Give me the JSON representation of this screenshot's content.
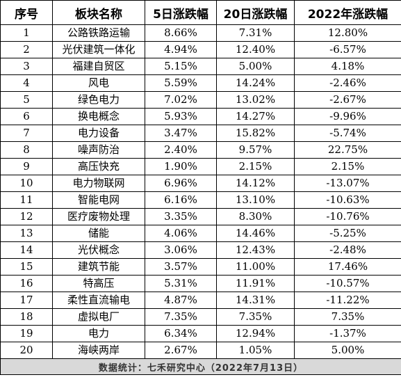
{
  "headers": [
    "序号",
    "板块名称",
    "5日涨跌幅",
    "20日涨跌幅",
    "2022年涨跌幅"
  ],
  "rows": [
    [
      "1",
      "公路铁路运输",
      "8.66%",
      "7.31%",
      "12.80%"
    ],
    [
      "2",
      "光伏建筑一体化",
      "4.94%",
      "12.40%",
      "-6.57%"
    ],
    [
      "3",
      "福建自贸区",
      "5.15%",
      "5.00%",
      "4.18%"
    ],
    [
      "4",
      "风电",
      "5.59%",
      "14.24%",
      "-2.46%"
    ],
    [
      "5",
      "绿色电力",
      "7.02%",
      "13.02%",
      "-2.67%"
    ],
    [
      "6",
      "换电概念",
      "5.93%",
      "14.27%",
      "-9.96%"
    ],
    [
      "7",
      "电力设备",
      "3.47%",
      "15.82%",
      "-5.74%"
    ],
    [
      "8",
      "噪声防治",
      "2.40%",
      "9.57%",
      "22.75%"
    ],
    [
      "9",
      "高压快充",
      "1.90%",
      "2.15%",
      "2.15%"
    ],
    [
      "10",
      "电力物联网",
      "6.96%",
      "14.12%",
      "-13.07%"
    ],
    [
      "11",
      "智能电网",
      "6.16%",
      "13.10%",
      "-10.63%"
    ],
    [
      "12",
      "医疗废物处理",
      "3.35%",
      "8.30%",
      "-10.76%"
    ],
    [
      "13",
      "储能",
      "4.06%",
      "14.46%",
      "-5.25%"
    ],
    [
      "14",
      "光伏概念",
      "3.06%",
      "12.43%",
      "-2.48%"
    ],
    [
      "15",
      "建筑节能",
      "3.57%",
      "11.00%",
      "17.46%"
    ],
    [
      "16",
      "特高压",
      "5.31%",
      "11.91%",
      "-10.57%"
    ],
    [
      "17",
      "柔性直流输电",
      "4.87%",
      "14.31%",
      "-11.22%"
    ],
    [
      "18",
      "虚拟电厂",
      "7.35%",
      "7.35%",
      "7.35%"
    ],
    [
      "19",
      "电力",
      "6.34%",
      "12.94%",
      "-1.37%"
    ],
    [
      "20",
      "海峡两岸",
      "2.67%",
      "1.05%",
      "5.00%"
    ]
  ],
  "footer": "数据统计：七禾研究中心（2022年7月13日）"
}
